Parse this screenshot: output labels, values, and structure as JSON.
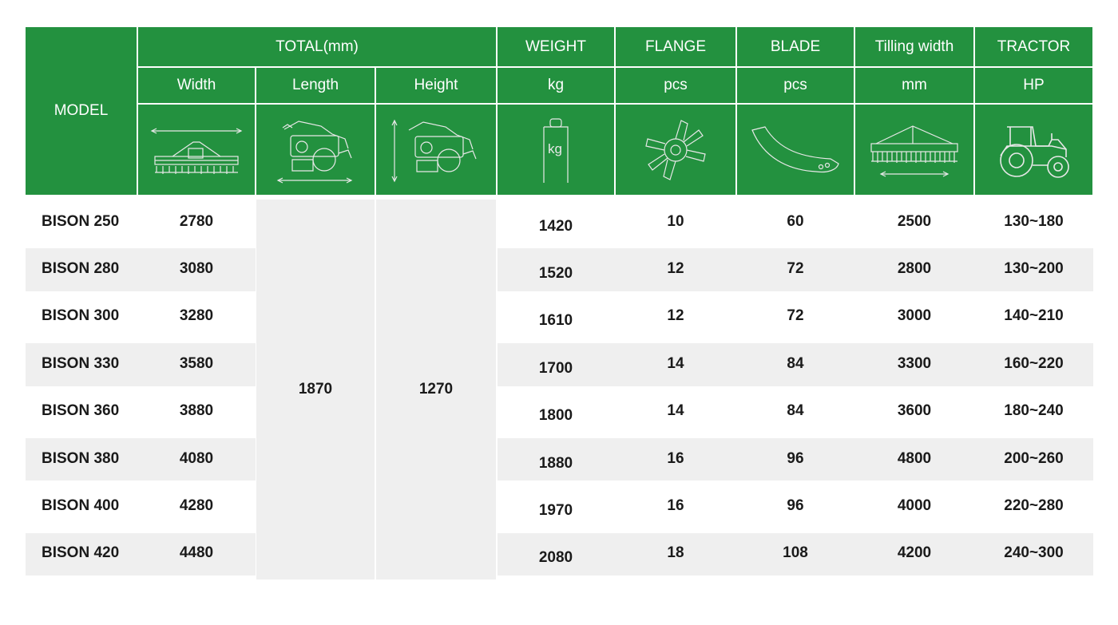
{
  "table": {
    "model_header": "MODEL",
    "total_header": "TOTAL(mm)",
    "sub_headers": {
      "width": "Width",
      "length": "Length",
      "height": "Height"
    },
    "weight": {
      "title": "WEIGHT",
      "unit": "kg"
    },
    "flange": {
      "title": "FLANGE",
      "unit": "pcs"
    },
    "blade": {
      "title": "BLADE",
      "unit": "pcs"
    },
    "tilling": {
      "title": "Tilling width",
      "unit": "mm"
    },
    "tractor": {
      "title": "TRACTOR",
      "unit": "HP"
    },
    "weight_icon_text": "kg",
    "length_value": "1870",
    "height_value": "1270",
    "rows": [
      {
        "model": "BISON 250",
        "width": "2780",
        "weight": "1420",
        "flange": "10",
        "blade": "60",
        "tilling": "2500",
        "tractor": "130~180"
      },
      {
        "model": "BISON 280",
        "width": "3080",
        "weight": "1520",
        "flange": "12",
        "blade": "72",
        "tilling": "2800",
        "tractor": "130~200"
      },
      {
        "model": "BISON 300",
        "width": "3280",
        "weight": "1610",
        "flange": "12",
        "blade": "72",
        "tilling": "3000",
        "tractor": "140~210"
      },
      {
        "model": "BISON 330",
        "width": "3580",
        "weight": "1700",
        "flange": "14",
        "blade": "84",
        "tilling": "3300",
        "tractor": "160~220"
      },
      {
        "model": "BISON 360",
        "width": "3880",
        "weight": "1800",
        "flange": "14",
        "blade": "84",
        "tilling": "3600",
        "tractor": "180~240"
      },
      {
        "model": "BISON 380",
        "width": "4080",
        "weight": "1880",
        "flange": "16",
        "blade": "96",
        "tilling": "4800",
        "tractor": "200~260"
      },
      {
        "model": "BISON 400",
        "width": "4280",
        "weight": "1970",
        "flange": "16",
        "blade": "96",
        "tilling": "4000",
        "tractor": "220~280"
      },
      {
        "model": "BISON 420",
        "width": "4480",
        "weight": "2080",
        "flange": "18",
        "blade": "108",
        "tilling": "4200",
        "tractor": "240~300"
      }
    ]
  },
  "icons": {
    "width": "rotary-tiller-front-width-icon",
    "length": "rotary-tiller-side-length-icon",
    "height": "rotary-tiller-side-height-icon",
    "weight": "weight-kg-icon",
    "flange": "flange-rotor-icon",
    "blade": "tiller-blade-icon",
    "tilling": "tilling-width-icon",
    "tractor": "tractor-icon"
  },
  "colors": {
    "header_green": "#23913f",
    "stripe_gray": "#efefef",
    "text": "#1a1a1a"
  }
}
